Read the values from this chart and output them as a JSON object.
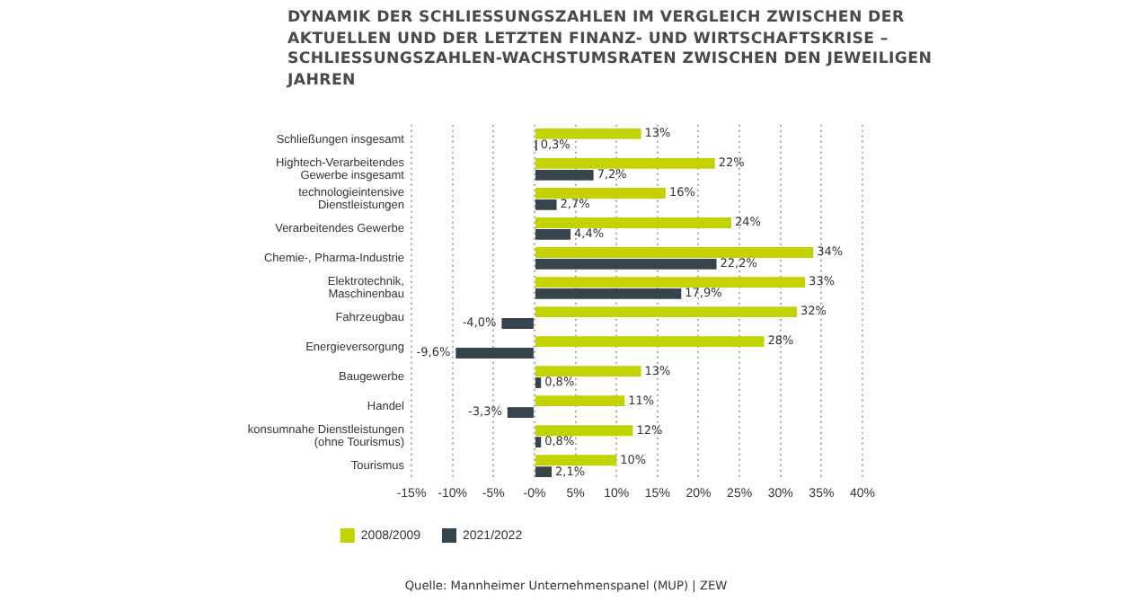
{
  "chart_data": {
    "type": "bar",
    "orientation": "horizontal",
    "title": "DYNAMIK DER SCHLIESSUNGSZAHLEN IM VERGLEICH ZWISCHEN DER AKTUELLEN UND DER LETZTEN FINANZ- UND WIRTSCHAFTSKRISE – SCHLIESSUNGSZAHLEN-WACHSTUMSRATEN ZWISCHEN DEN JEWEILIGEN JAHREN",
    "categories": [
      "Schließungen insgesamt",
      "Hightech-Verarbeitendes\nGewerbe insgesamt",
      "technologieintensive\nDienstleistungen",
      "Verarbeitendes Gewerbe",
      "Chemie-, Pharma-Industrie",
      "Elektrotechnik,\nMaschinenbau",
      "Fahrzeugbau",
      "Energieversorgung",
      "Baugewerbe",
      "Handel",
      "konsumnahe Dienstleistungen\n(ohne Tourismus)",
      "Tourismus"
    ],
    "series": [
      {
        "name": "2008/2009",
        "color": "#c3d300",
        "values": [
          13,
          22,
          16,
          24,
          34,
          33,
          32,
          28,
          13,
          11,
          12,
          10
        ],
        "value_labels": [
          "13%",
          "22%",
          "16%",
          "24%",
          "34%",
          "33%",
          "32%",
          "28%",
          "13%",
          "11%",
          "12%",
          "10%"
        ]
      },
      {
        "name": "2021/2022",
        "color": "#36444c",
        "values": [
          0.3,
          7.2,
          2.7,
          4.4,
          22.2,
          17.9,
          -4.0,
          -9.6,
          0.8,
          -3.3,
          0.8,
          2.1
        ],
        "value_labels": [
          "0,3%",
          "7,2%",
          "2,7%",
          "4,4%",
          "22,2%",
          "17,9%",
          "-4,0%",
          "-9,6%",
          "0,8%",
          "-3,3%",
          "0,8%",
          "2,1%"
        ]
      }
    ],
    "xlim": [
      -15,
      40
    ],
    "xticks": [
      {
        "value": -15,
        "label": "-15%"
      },
      {
        "value": -10,
        "label": "-10%"
      },
      {
        "value": -5,
        "label": "-5%"
      },
      {
        "value": 0,
        "label": "-0%"
      },
      {
        "value": 5,
        "label": "5%"
      },
      {
        "value": 10,
        "label": "10%"
      },
      {
        "value": 15,
        "label": "15%"
      },
      {
        "value": 20,
        "label": "20%"
      },
      {
        "value": 25,
        "label": "25%"
      },
      {
        "value": 30,
        "label": "30%"
      },
      {
        "value": 35,
        "label": "35%"
      },
      {
        "value": 40,
        "label": "40%"
      }
    ],
    "grid": "x",
    "legend": "bottom",
    "annotations": [
      "Quelle: Mannheimer Unternehmenspanel (MUP) | ZEW"
    ]
  }
}
